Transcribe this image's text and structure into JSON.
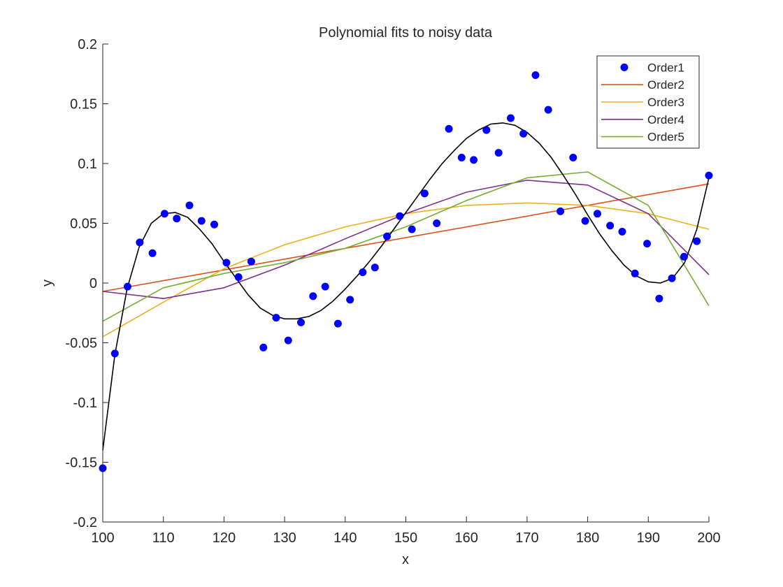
{
  "chart_data": {
    "type": "scatter",
    "title": "Polynomial fits to noisy data",
    "xlabel": "x",
    "ylabel": "y",
    "xlim": [
      100,
      200
    ],
    "ylim": [
      -0.2,
      0.2
    ],
    "xticks": [
      100,
      110,
      120,
      130,
      140,
      150,
      160,
      170,
      180,
      190,
      200
    ],
    "yticks": [
      -0.2,
      -0.15,
      -0.1,
      -0.05,
      0,
      0.05,
      0.1,
      0.15,
      0.2
    ],
    "xtick_labels": [
      "100",
      "110",
      "120",
      "130",
      "140",
      "150",
      "160",
      "170",
      "180",
      "190",
      "200"
    ],
    "ytick_labels": [
      "-0.2",
      "-0.15",
      "-0.1",
      "-0.05",
      "0",
      "0.05",
      "0.1",
      "0.15",
      "0.2"
    ],
    "grid": false,
    "legend_position": "top-right",
    "series": [
      {
        "name": "Order1",
        "kind": "markers",
        "color": "#0000ff",
        "x": [
          100.0,
          102.0,
          104.1,
          106.1,
          108.2,
          110.2,
          112.2,
          114.3,
          116.3,
          118.4,
          120.4,
          122.4,
          124.5,
          126.5,
          128.6,
          130.6,
          132.7,
          134.7,
          136.7,
          138.8,
          140.8,
          142.9,
          144.9,
          146.9,
          149.0,
          151.0,
          153.1,
          155.1,
          157.1,
          159.2,
          161.2,
          163.3,
          165.3,
          167.3,
          169.4,
          171.4,
          173.5,
          175.5,
          177.6,
          179.6,
          181.6,
          183.7,
          185.7,
          187.8,
          189.8,
          191.8,
          193.9,
          195.9,
          198.0,
          200.0
        ],
        "y": [
          -0.155,
          -0.059,
          -0.003,
          0.034,
          0.025,
          0.058,
          0.054,
          0.065,
          0.052,
          0.049,
          0.017,
          0.005,
          0.018,
          -0.054,
          -0.029,
          -0.048,
          -0.033,
          -0.011,
          -0.003,
          -0.034,
          -0.014,
          0.009,
          0.013,
          0.039,
          0.056,
          0.045,
          0.075,
          0.05,
          0.129,
          0.105,
          0.103,
          0.128,
          0.109,
          0.138,
          0.125,
          0.174,
          0.145,
          0.06,
          0.105,
          0.052,
          0.058,
          0.048,
          0.043,
          0.008,
          0.033,
          -0.013,
          0.004,
          0.022,
          0.035,
          0.09
        ]
      },
      {
        "name": "Order2",
        "kind": "line",
        "color": "#d95319",
        "x": [
          100,
          200
        ],
        "y": [
          -0.007,
          0.083
        ]
      },
      {
        "name": "Order3",
        "kind": "line",
        "color": "#edb120",
        "x": [
          100,
          110,
          120,
          130,
          140,
          150,
          160,
          170,
          180,
          190,
          200
        ],
        "y": [
          -0.045,
          -0.016,
          0.012,
          0.032,
          0.047,
          0.058,
          0.065,
          0.067,
          0.065,
          0.058,
          0.045
        ]
      },
      {
        "name": "Order4",
        "kind": "line",
        "color": "#7e2f8e",
        "x": [
          100,
          110,
          120,
          130,
          140,
          150,
          160,
          170,
          180,
          190,
          200
        ],
        "y": [
          -0.007,
          -0.013,
          -0.004,
          0.015,
          0.037,
          0.058,
          0.076,
          0.086,
          0.082,
          0.058,
          0.007
        ]
      },
      {
        "name": "Order5",
        "kind": "line",
        "color": "#77ac30",
        "x": [
          100,
          110,
          120,
          130,
          140,
          150,
          160,
          170,
          180,
          190,
          200
        ],
        "y": [
          -0.032,
          -0.004,
          0.008,
          0.017,
          0.029,
          0.047,
          0.069,
          0.088,
          0.093,
          0.065,
          -0.019
        ]
      },
      {
        "kind": "line",
        "color": "#000000",
        "x": [
          100,
          102,
          104,
          106,
          108,
          110,
          112,
          114,
          116,
          118,
          120,
          122,
          124,
          126,
          128,
          130,
          132,
          134,
          136,
          138,
          140,
          142,
          144,
          146,
          148,
          150,
          152,
          154,
          156,
          158,
          160,
          162,
          164,
          166,
          168,
          170,
          172,
          174,
          176,
          178,
          180,
          182,
          184,
          186,
          188,
          190,
          192,
          194,
          196,
          198,
          200
        ],
        "y": [
          -0.14,
          -0.06,
          -0.005,
          0.03,
          0.05,
          0.058,
          0.059,
          0.055,
          0.045,
          0.033,
          0.018,
          0.004,
          -0.01,
          -0.021,
          -0.027,
          -0.03,
          -0.03,
          -0.028,
          -0.023,
          -0.015,
          -0.005,
          0.006,
          0.018,
          0.031,
          0.045,
          0.059,
          0.073,
          0.087,
          0.1,
          0.111,
          0.121,
          0.128,
          0.133,
          0.134,
          0.132,
          0.126,
          0.117,
          0.105,
          0.09,
          0.074,
          0.057,
          0.041,
          0.027,
          0.015,
          0.006,
          0.001,
          0.0,
          0.004,
          0.017,
          0.045,
          0.088
        ]
      }
    ]
  }
}
